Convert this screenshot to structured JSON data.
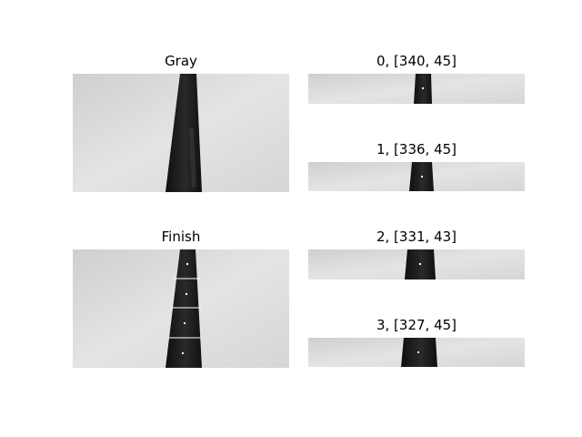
{
  "figure": {
    "panels": [
      {
        "id": "gray",
        "title": "Gray"
      },
      {
        "id": "finish",
        "title": "Finish"
      },
      {
        "id": "slice0",
        "title": "0, [340, 45]"
      },
      {
        "id": "slice1",
        "title": "1, [336, 45]"
      },
      {
        "id": "slice2",
        "title": "2, [331, 43]"
      },
      {
        "id": "slice3",
        "title": "3, [327, 45]"
      }
    ]
  },
  "colors": {
    "background": "#ffffff",
    "floor": "#d9d9d9",
    "tape": "#141414",
    "marker": "#ffffff"
  }
}
